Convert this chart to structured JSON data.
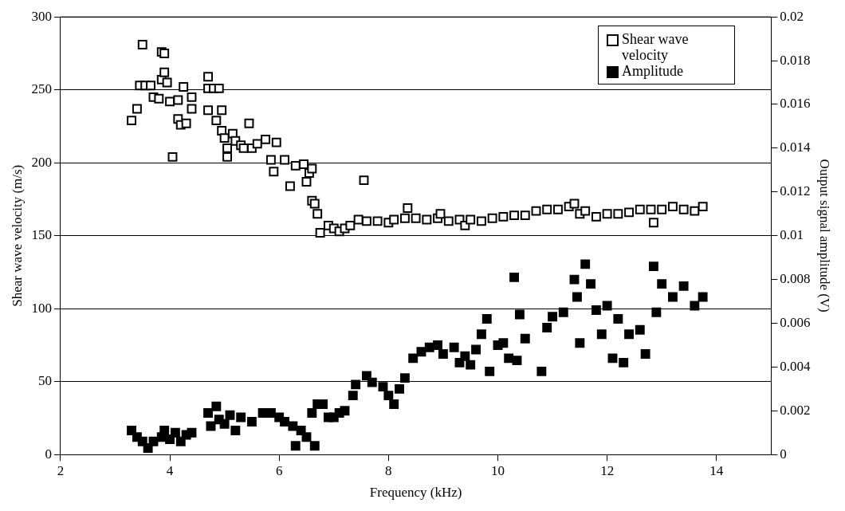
{
  "chart_data": {
    "type": "scatter",
    "xlabel": "Frequency (kHz)",
    "ylabel": "Shear wave velocity (m/s)",
    "y2label": "Output signal amplitude (V)",
    "xlim": [
      2,
      15
    ],
    "xticks": [
      2,
      4,
      6,
      8,
      10,
      12,
      14
    ],
    "ylim": [
      0,
      300
    ],
    "yticks": [
      0,
      50,
      100,
      150,
      200,
      250,
      300
    ],
    "y2lim": [
      0,
      0.02
    ],
    "y2ticks": [
      0,
      0.002,
      0.004,
      0.006,
      0.008,
      0.01,
      0.012,
      0.014,
      0.016,
      0.018,
      0.02
    ],
    "grid": "y",
    "legend": "top right",
    "marker": "square",
    "series": [
      {
        "name": "Shear wave velocity",
        "color": "#000000",
        "x": [
          3.3,
          3.4,
          3.45,
          3.5,
          3.55,
          3.65,
          3.7,
          3.8,
          3.85,
          3.85,
          3.9,
          3.9,
          3.95,
          4.0,
          4.05,
          4.15,
          4.15,
          4.2,
          4.25,
          4.3,
          4.4,
          4.4,
          4.7,
          4.7,
          4.7,
          4.8,
          4.85,
          4.9,
          4.95,
          4.95,
          5.0,
          5.05,
          5.05,
          5.15,
          5.2,
          5.3,
          5.35,
          5.45,
          5.5,
          5.6,
          5.75,
          5.85,
          5.9,
          5.95,
          6.1,
          6.2,
          6.3,
          6.45,
          6.5,
          6.55,
          6.6,
          6.6,
          6.65,
          6.7,
          6.75,
          6.9,
          7.0,
          7.1,
          7.2,
          7.3,
          7.45,
          7.55,
          7.6,
          7.8,
          8.0,
          8.1,
          8.3,
          8.35,
          8.5,
          8.7,
          8.9,
          8.95,
          9.1,
          9.3,
          9.4,
          9.5,
          9.7,
          9.9,
          10.1,
          10.3,
          10.5,
          10.7,
          10.9,
          11.1,
          11.3,
          11.4,
          11.5,
          11.6,
          11.8,
          12.0,
          12.2,
          12.4,
          12.6,
          12.8,
          12.85,
          13.0,
          13.2,
          13.4,
          13.6,
          13.75
        ],
        "values": [
          229,
          237,
          253,
          281,
          253,
          253,
          245,
          244,
          257,
          276,
          275,
          262,
          255,
          242,
          204,
          243,
          230,
          226,
          252,
          227,
          245,
          237,
          259,
          251,
          236,
          251,
          229,
          251,
          236,
          222,
          217,
          210,
          204,
          220,
          215,
          212,
          210,
          227,
          210,
          213,
          216,
          202,
          194,
          214,
          202,
          184,
          198,
          199,
          187,
          193,
          174,
          196,
          172,
          165,
          152,
          157,
          155,
          153,
          155,
          157,
          161,
          188,
          160,
          160,
          159,
          161,
          162,
          169,
          162,
          161,
          162,
          165,
          160,
          161,
          157,
          161,
          160,
          162,
          163,
          164,
          164,
          167,
          168,
          168,
          170,
          172,
          165,
          167,
          163,
          165,
          165,
          166,
          168,
          168,
          159,
          168,
          170,
          168,
          167,
          170
        ]
      },
      {
        "name": "Amplitude",
        "color": "#000000",
        "axis": "y2",
        "x": [
          3.3,
          3.4,
          3.5,
          3.6,
          3.7,
          3.85,
          3.9,
          4.0,
          4.1,
          4.2,
          4.3,
          4.4,
          4.7,
          4.75,
          4.85,
          4.9,
          5.0,
          5.1,
          5.2,
          5.3,
          5.5,
          5.7,
          5.85,
          6.0,
          6.1,
          6.25,
          6.3,
          6.4,
          6.5,
          6.6,
          6.65,
          6.7,
          6.8,
          6.9,
          7.0,
          7.1,
          7.2,
          7.35,
          7.4,
          7.6,
          7.7,
          7.9,
          8.0,
          8.1,
          8.2,
          8.3,
          8.45,
          8.6,
          8.75,
          8.9,
          9.0,
          9.2,
          9.3,
          9.4,
          9.5,
          9.6,
          9.7,
          9.8,
          9.85,
          10.0,
          10.1,
          10.2,
          10.3,
          10.35,
          10.4,
          10.5,
          10.8,
          10.9,
          11.0,
          11.2,
          11.4,
          11.45,
          11.5,
          11.6,
          11.7,
          11.8,
          11.9,
          12.0,
          12.1,
          12.2,
          12.3,
          12.4,
          12.6,
          12.7,
          12.85,
          12.9,
          13.0,
          13.2,
          13.4,
          13.6,
          13.75
        ],
        "values": [
          0.0011,
          0.0008,
          0.0006,
          0.0003,
          0.0006,
          0.0008,
          0.0011,
          0.0007,
          0.001,
          0.0006,
          0.0009,
          0.001,
          0.0019,
          0.0013,
          0.0022,
          0.0016,
          0.0014,
          0.0018,
          0.0011,
          0.0017,
          0.0015,
          0.0019,
          0.0019,
          0.0017,
          0.0015,
          0.0013,
          0.0004,
          0.0011,
          0.0008,
          0.0019,
          0.0004,
          0.0023,
          0.0023,
          0.0017,
          0.0017,
          0.0019,
          0.002,
          0.0027,
          0.0032,
          0.0036,
          0.0033,
          0.0031,
          0.0027,
          0.0023,
          0.003,
          0.0035,
          0.0044,
          0.0047,
          0.0049,
          0.005,
          0.0046,
          0.0049,
          0.0042,
          0.0045,
          0.0041,
          0.0048,
          0.0055,
          0.0062,
          0.0038,
          0.005,
          0.0051,
          0.0044,
          0.0081,
          0.0043,
          0.0064,
          0.0053,
          0.0038,
          0.0058,
          0.0063,
          0.0065,
          0.008,
          0.0072,
          0.0051,
          0.0087,
          0.0078,
          0.0066,
          0.0055,
          0.0068,
          0.0044,
          0.0062,
          0.0042,
          0.0055,
          0.0057,
          0.0046,
          0.0086,
          0.0065,
          0.0078,
          0.0072,
          0.0077,
          0.0068,
          0.0072
        ]
      }
    ]
  }
}
